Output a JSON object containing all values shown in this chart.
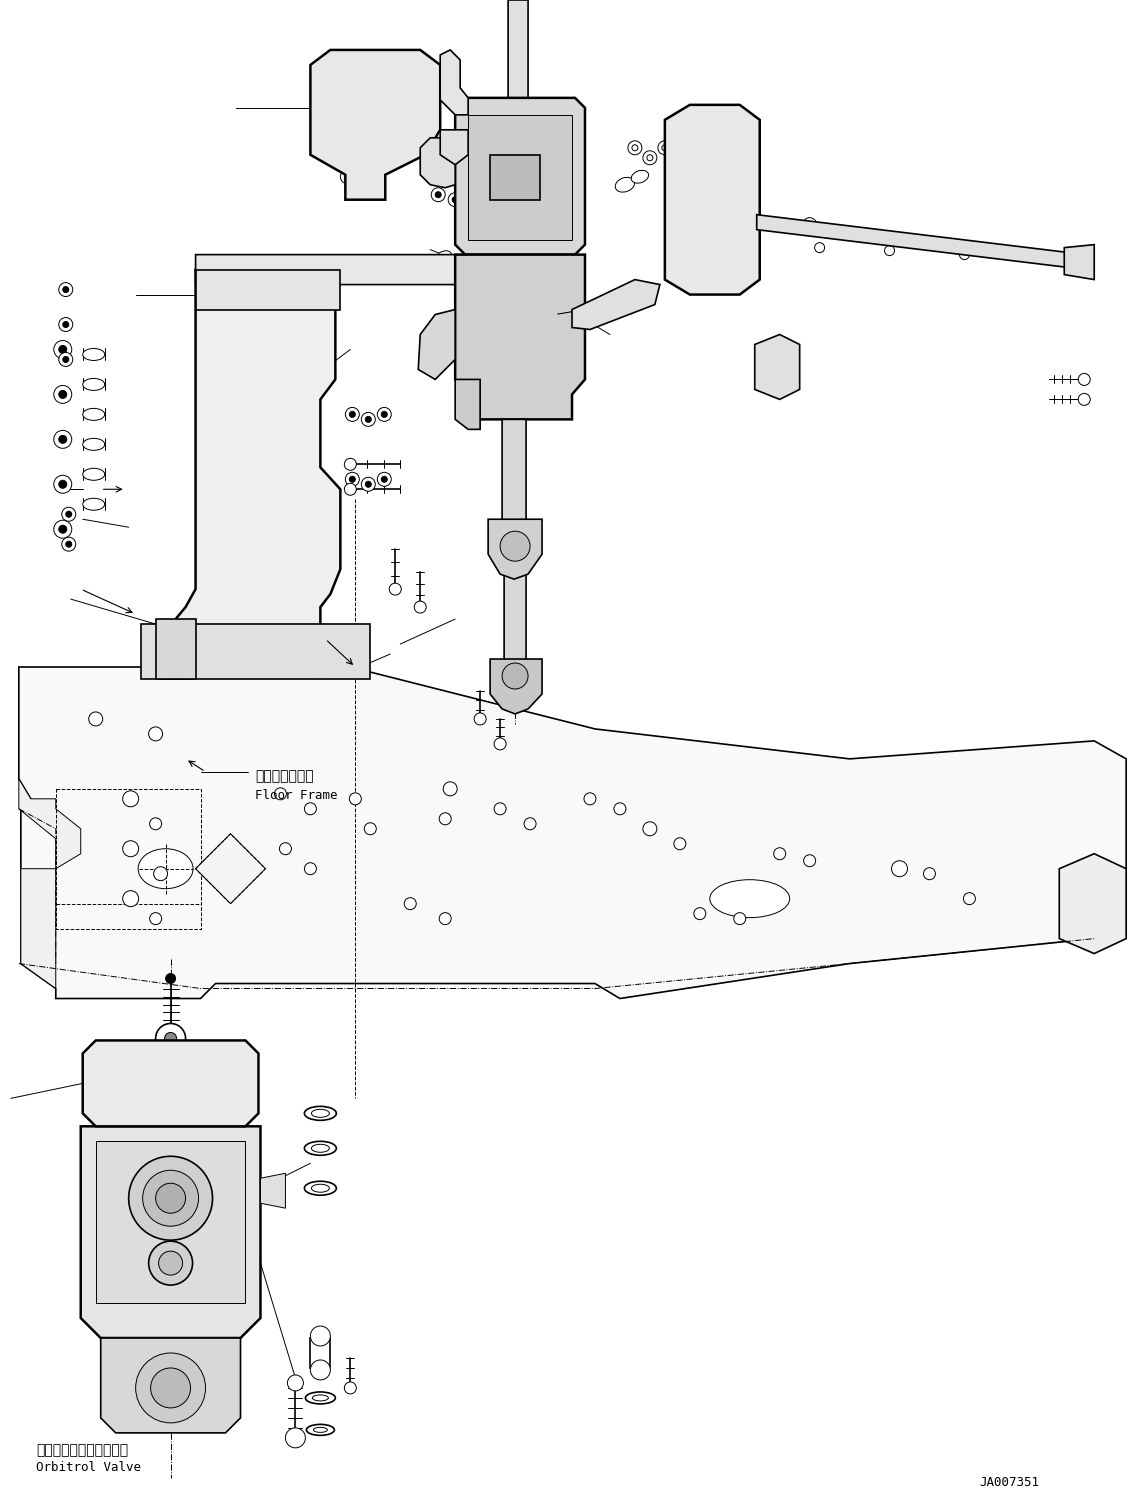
{
  "background_color": "#ffffff",
  "line_color": "#000000",
  "diagram_id": "JA007351",
  "label_floor_frame_jp": "フロアフレーム",
  "label_floor_frame_en": "Floor Frame",
  "label_orbitrol_jp": "オービットロールバルブ",
  "label_orbitrol_en": "Orbitrol Valve",
  "figsize": [
    11.47,
    14.92
  ],
  "dpi": 100,
  "lw_main": 1.2,
  "lw_thin": 0.7,
  "lw_thick": 1.8
}
